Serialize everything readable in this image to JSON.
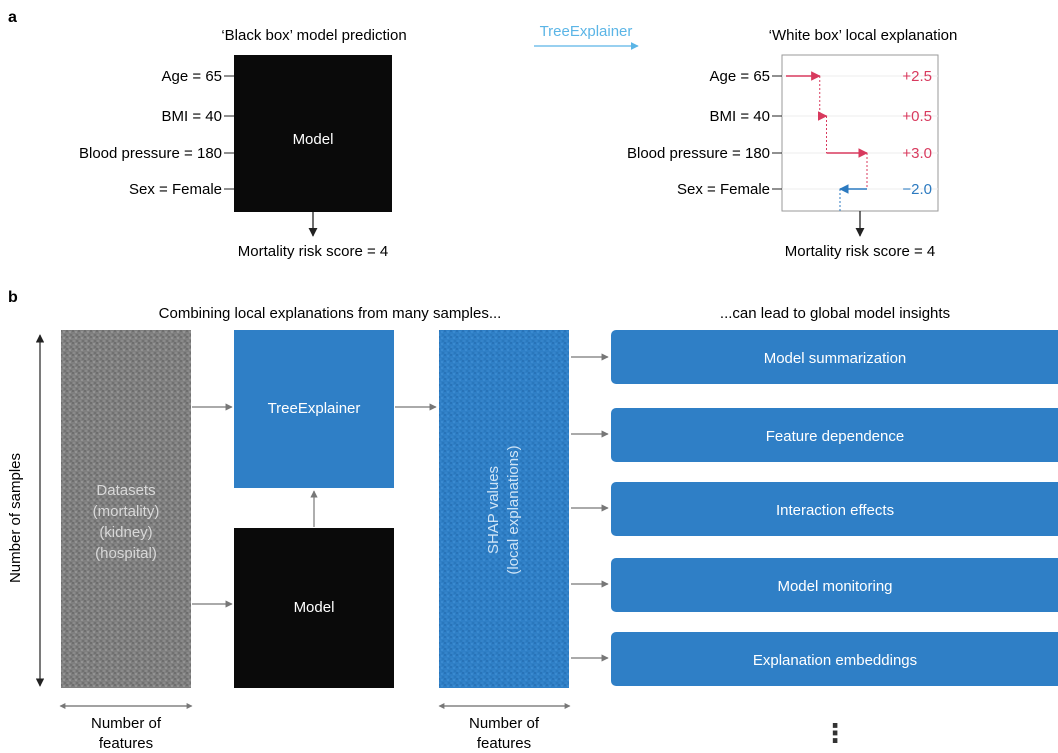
{
  "colors": {
    "black": "#0a0a0a",
    "blue": "#2f7fc6",
    "light_blue": "#5bb5e6",
    "red": "#d83a5e",
    "neg_blue": "#2c7ac0",
    "gray_text": "#333333",
    "dataset_gray": "#7d7d7d"
  },
  "panel_a": {
    "letter": "a",
    "left_title": "‘Black box’ model prediction",
    "arrow_label": "TreeExplainer",
    "right_title": "‘White box’ local explanation",
    "features": [
      "Age = 65",
      "BMI = 40",
      "Blood pressure = 180",
      "Sex = Female"
    ],
    "model_label": "Model",
    "output_left": "Mortality risk score = 4",
    "output_right": "Mortality risk score = 4",
    "contributions": [
      {
        "value": 2.5,
        "label": "+2.5"
      },
      {
        "value": 0.5,
        "label": "+0.5"
      },
      {
        "value": 3.0,
        "label": "+3.0"
      },
      {
        "value": -2.0,
        "label": "−2.0"
      }
    ]
  },
  "panel_b": {
    "letter": "b",
    "left_title": "Combining local explanations from many samples...",
    "right_title": "...can lead to global model insights",
    "y_axis_label": "Number of samples",
    "dataset_lines": [
      "Datasets",
      "(mortality)",
      "(kidney)",
      "(hospital)"
    ],
    "features_label_left": [
      "Number of",
      "features"
    ],
    "features_label_right": [
      "Number of",
      "features"
    ],
    "treeexplainer_label": "TreeExplainer",
    "model_label": "Model",
    "shap_lines": [
      "SHAP values",
      "(local explanations)"
    ],
    "insights": [
      "Model summarization",
      "Feature dependence",
      "Interaction effects",
      "Model monitoring",
      "Explanation embeddings"
    ],
    "more_indicator": "⋮"
  }
}
